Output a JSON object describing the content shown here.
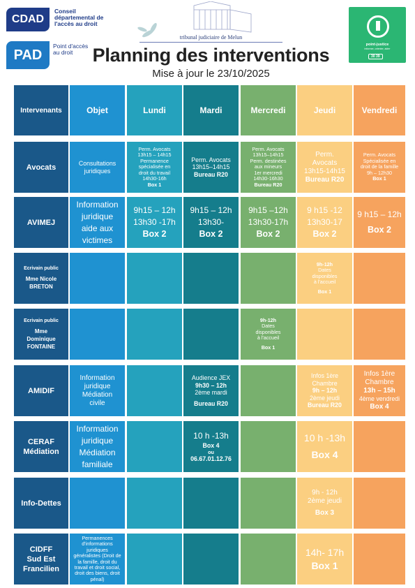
{
  "header": {
    "cdad_logo": "CDAD",
    "cdad_text": "Conseil départemental de l'accès au droit",
    "pad_logo": "PAD",
    "pad_text": "Point d'accès au droit",
    "tribunal": "tribunal judiciaire de Melun",
    "point_justice": {
      "name": "point-justice",
      "subtitle": "informer, orienter, aider",
      "phone": "30 39"
    },
    "title": "Planning des interventions",
    "subtitle": "Mise à jour le 23/10/2025"
  },
  "colors": {
    "intervenants": "#1a5889",
    "objet": "#1f92d1",
    "lundi": "#25a2bd",
    "mardi": "#157d8c",
    "mercredi": "#78b06e",
    "jeudi": "#fbcf81",
    "vendredi": "#f6a35e"
  },
  "table": {
    "headers": [
      "Intervenants",
      "Objet",
      "Lundi",
      "Mardi",
      "Mercredi",
      "Jeudi",
      "Vendredi"
    ],
    "rows": [
      {
        "intervenant": [
          {
            "t": "Avocats",
            "s": "name-l"
          }
        ],
        "cells": [
          [
            {
              "t": "Consultations",
              "s": "t-s"
            },
            {
              "t": "juridiques",
              "s": "t-s"
            }
          ],
          [
            {
              "t": "Perm. Avocats",
              "s": "t-xs"
            },
            {
              "t": "13h15 – 14h15",
              "s": "t-xs"
            },
            {
              "t": "Permanence",
              "s": "t-xs"
            },
            {
              "t": "spécialisée en",
              "s": "t-xs"
            },
            {
              "t": "droit du travail",
              "s": "t-xs"
            },
            {
              "t": "14h30-16h",
              "s": "t-xs"
            },
            {
              "t": "Box 1",
              "s": "t-xsb"
            }
          ],
          [
            {
              "t": "Perm. Avocats",
              "s": "t-s"
            },
            {
              "t": "13h15–14h15",
              "s": "t-s"
            },
            {
              "t": "Bureau R20",
              "s": "t-sb"
            }
          ],
          [
            {
              "t": "Perm. Avocats",
              "s": "t-xs"
            },
            {
              "t": "13h15–14h15",
              "s": "t-xs"
            },
            {
              "t": "Perm. destinées",
              "s": "t-xs"
            },
            {
              "t": "aux mineurs",
              "s": "t-xs"
            },
            {
              "t": "1er mercredi",
              "s": "t-xs"
            },
            {
              "t": "14h30-16h30",
              "s": "t-xs"
            },
            {
              "t": "Bureau R20",
              "s": "t-xsb"
            }
          ],
          [
            {
              "t": "Perm.",
              "s": "t-m"
            },
            {
              "t": "Avocats",
              "s": "t-m"
            },
            {
              "t": "13h15-14h15",
              "s": "t-m"
            },
            {
              "t": "Bureau R20",
              "s": "t-mb"
            }
          ],
          [
            {
              "t": "Perm. Avocats",
              "s": "t-xs"
            },
            {
              "t": "Spécialisée en",
              "s": "t-xs"
            },
            {
              "t": "droit de la famille",
              "s": "t-xs"
            },
            {
              "t": "9h – 12h30",
              "s": "t-xs"
            },
            {
              "t": "Box 1",
              "s": "t-xsb"
            }
          ]
        ]
      },
      {
        "intervenant": [
          {
            "t": "AVIMEJ",
            "s": "name-l"
          }
        ],
        "cells": [
          [
            {
              "t": "Information",
              "s": "t-l"
            },
            {
              "t": "juridique",
              "s": "t-l"
            },
            {
              "t": "aide aux",
              "s": "t-l"
            },
            {
              "t": "victimes",
              "s": "t-l"
            }
          ],
          [
            {
              "t": "9h15 – 12h",
              "s": "t-l"
            },
            {
              "t": "13h30 -17h",
              "s": "t-l"
            },
            {
              "t": "Box 2",
              "s": "t-lb"
            }
          ],
          [
            {
              "t": "9h15 – 12h",
              "s": "t-l"
            },
            {
              "t": "13h30-",
              "s": "t-l"
            },
            {
              "t": "Box 2",
              "s": "t-lb"
            }
          ],
          [
            {
              "t": "9h15 –12h",
              "s": "t-l"
            },
            {
              "t": "13h30-17h",
              "s": "t-l"
            },
            {
              "t": "Box 2",
              "s": "t-lb"
            }
          ],
          [
            {
              "t": "9 h15 -12",
              "s": "t-l"
            },
            {
              "t": "13h30-17",
              "s": "t-l"
            },
            {
              "t": "Box 2",
              "s": "t-lb"
            }
          ],
          [
            {
              "t": "9 h15 – 12h",
              "s": "t-l"
            },
            {
              "t": "",
              "s": "gap"
            },
            {
              "t": "Box 2",
              "s": "t-lb"
            }
          ]
        ]
      },
      {
        "intervenant": [
          {
            "t": "Ecrivain public",
            "s": "role-s"
          },
          {
            "t": "Mme Nicole",
            "s": "name-s"
          },
          {
            "t": "BRETON",
            "s": "name-s"
          }
        ],
        "cells": [
          [],
          [],
          [],
          [],
          [
            {
              "t": "9h-12h",
              "s": "t-xsb"
            },
            {
              "t": "Dates",
              "s": "t-xs"
            },
            {
              "t": "disponibles",
              "s": "t-xs"
            },
            {
              "t": "à l'accueil",
              "s": "t-xs"
            },
            {
              "t": "",
              "s": "gap"
            },
            {
              "t": "Box 1",
              "s": "t-xsb"
            }
          ],
          []
        ]
      },
      {
        "intervenant": [
          {
            "t": "Ecrivain public",
            "s": "role-s"
          },
          {
            "t": "Mme",
            "s": "name-s"
          },
          {
            "t": "Dominique",
            "s": "name-s"
          },
          {
            "t": "FONTAINE",
            "s": "name-s"
          }
        ],
        "cells": [
          [],
          [],
          [],
          [
            {
              "t": "9h-12h",
              "s": "t-xsb"
            },
            {
              "t": "Dates",
              "s": "t-xs"
            },
            {
              "t": "disponibles",
              "s": "t-xs"
            },
            {
              "t": "à l'accueil",
              "s": "t-xs"
            },
            {
              "t": "",
              "s": "gap"
            },
            {
              "t": "Box 1",
              "s": "t-xsb"
            }
          ],
          [],
          []
        ]
      },
      {
        "intervenant": [
          {
            "t": "AMIDIF",
            "s": "name-l"
          }
        ],
        "cells": [
          [
            {
              "t": "Information",
              "s": "t-m"
            },
            {
              "t": "juridique",
              "s": "t-m"
            },
            {
              "t": "Médiation",
              "s": "t-m"
            },
            {
              "t": "civile",
              "s": "t-m"
            }
          ],
          [],
          [
            {
              "t": "Audience JEX",
              "s": "t-s"
            },
            {
              "t": "9h30 – 12h",
              "s": "t-sb"
            },
            {
              "t": "2ème mardi",
              "s": "t-s"
            },
            {
              "t": "",
              "s": "gap"
            },
            {
              "t": "Bureau R20",
              "s": "t-sb"
            }
          ],
          [],
          [
            {
              "t": "Infos 1ère",
              "s": "t-s"
            },
            {
              "t": "Chambre",
              "s": "t-s"
            },
            {
              "t": "9h – 12h",
              "s": "t-sb"
            },
            {
              "t": "2ème jeudi",
              "s": "t-s"
            },
            {
              "t": "Bureau R20",
              "s": "t-sb"
            }
          ],
          [
            {
              "t": "Infos 1ère",
              "s": "t-m"
            },
            {
              "t": "Chambre",
              "s": "t-m"
            },
            {
              "t": "13h – 15h",
              "s": "t-mb"
            },
            {
              "t": "4ème vendredi",
              "s": "t-s"
            },
            {
              "t": "Box 4",
              "s": "t-mb"
            }
          ]
        ]
      },
      {
        "intervenant": [
          {
            "t": "CERAF",
            "s": "name-l"
          },
          {
            "t": "Médiation",
            "s": "name-l"
          }
        ],
        "cells": [
          [
            {
              "t": "Information",
              "s": "t-l"
            },
            {
              "t": "juridique",
              "s": "t-l"
            },
            {
              "t": "Médiation",
              "s": "t-l"
            },
            {
              "t": "familiale",
              "s": "t-l"
            }
          ],
          [],
          [
            {
              "t": "10 h -13h",
              "s": "t-l"
            },
            {
              "t": "Box 4",
              "s": "t-sb"
            },
            {
              "t": "ou",
              "s": "t-xsb"
            },
            {
              "t": "06.67.01.12.76",
              "s": "t-sb"
            }
          ],
          [],
          [
            {
              "t": "10 h -13h",
              "s": "t-xl"
            },
            {
              "t": "",
              "s": "gap"
            },
            {
              "t": "Box 4",
              "s": "t-xlb"
            }
          ],
          []
        ]
      },
      {
        "intervenant": [
          {
            "t": "Info-Dettes",
            "s": "name-l"
          }
        ],
        "cells": [
          [],
          [],
          [],
          [],
          [
            {
              "t": "9h - 12h",
              "s": "t-m"
            },
            {
              "t": "2ème jeudi",
              "s": "t-m"
            },
            {
              "t": "",
              "s": "gap"
            },
            {
              "t": "Box 3",
              "s": "t-mb"
            }
          ],
          []
        ]
      },
      {
        "intervenant": [
          {
            "t": "CIDFF",
            "s": "name-l"
          },
          {
            "t": "Sud Est",
            "s": "name-l"
          },
          {
            "t": "Francilien",
            "s": "name-l"
          }
        ],
        "cells": [
          [
            {
              "t": "Permanences",
              "s": "t-xs"
            },
            {
              "t": "d'informations",
              "s": "t-xs"
            },
            {
              "t": "juridiques",
              "s": "t-xs"
            },
            {
              "t": "généralistes (Droit de",
              "s": "t-xs"
            },
            {
              "t": "la famille, droit du",
              "s": "t-xs"
            },
            {
              "t": "travail et droit social,",
              "s": "t-xs"
            },
            {
              "t": "droit des biens, droit",
              "s": "t-xs"
            },
            {
              "t": "pénal)",
              "s": "t-xs"
            }
          ],
          [],
          [],
          [],
          [
            {
              "t": "14h- 17h",
              "s": "t-xl"
            },
            {
              "t": "Box 1",
              "s": "t-xlb"
            }
          ],
          []
        ]
      }
    ]
  }
}
